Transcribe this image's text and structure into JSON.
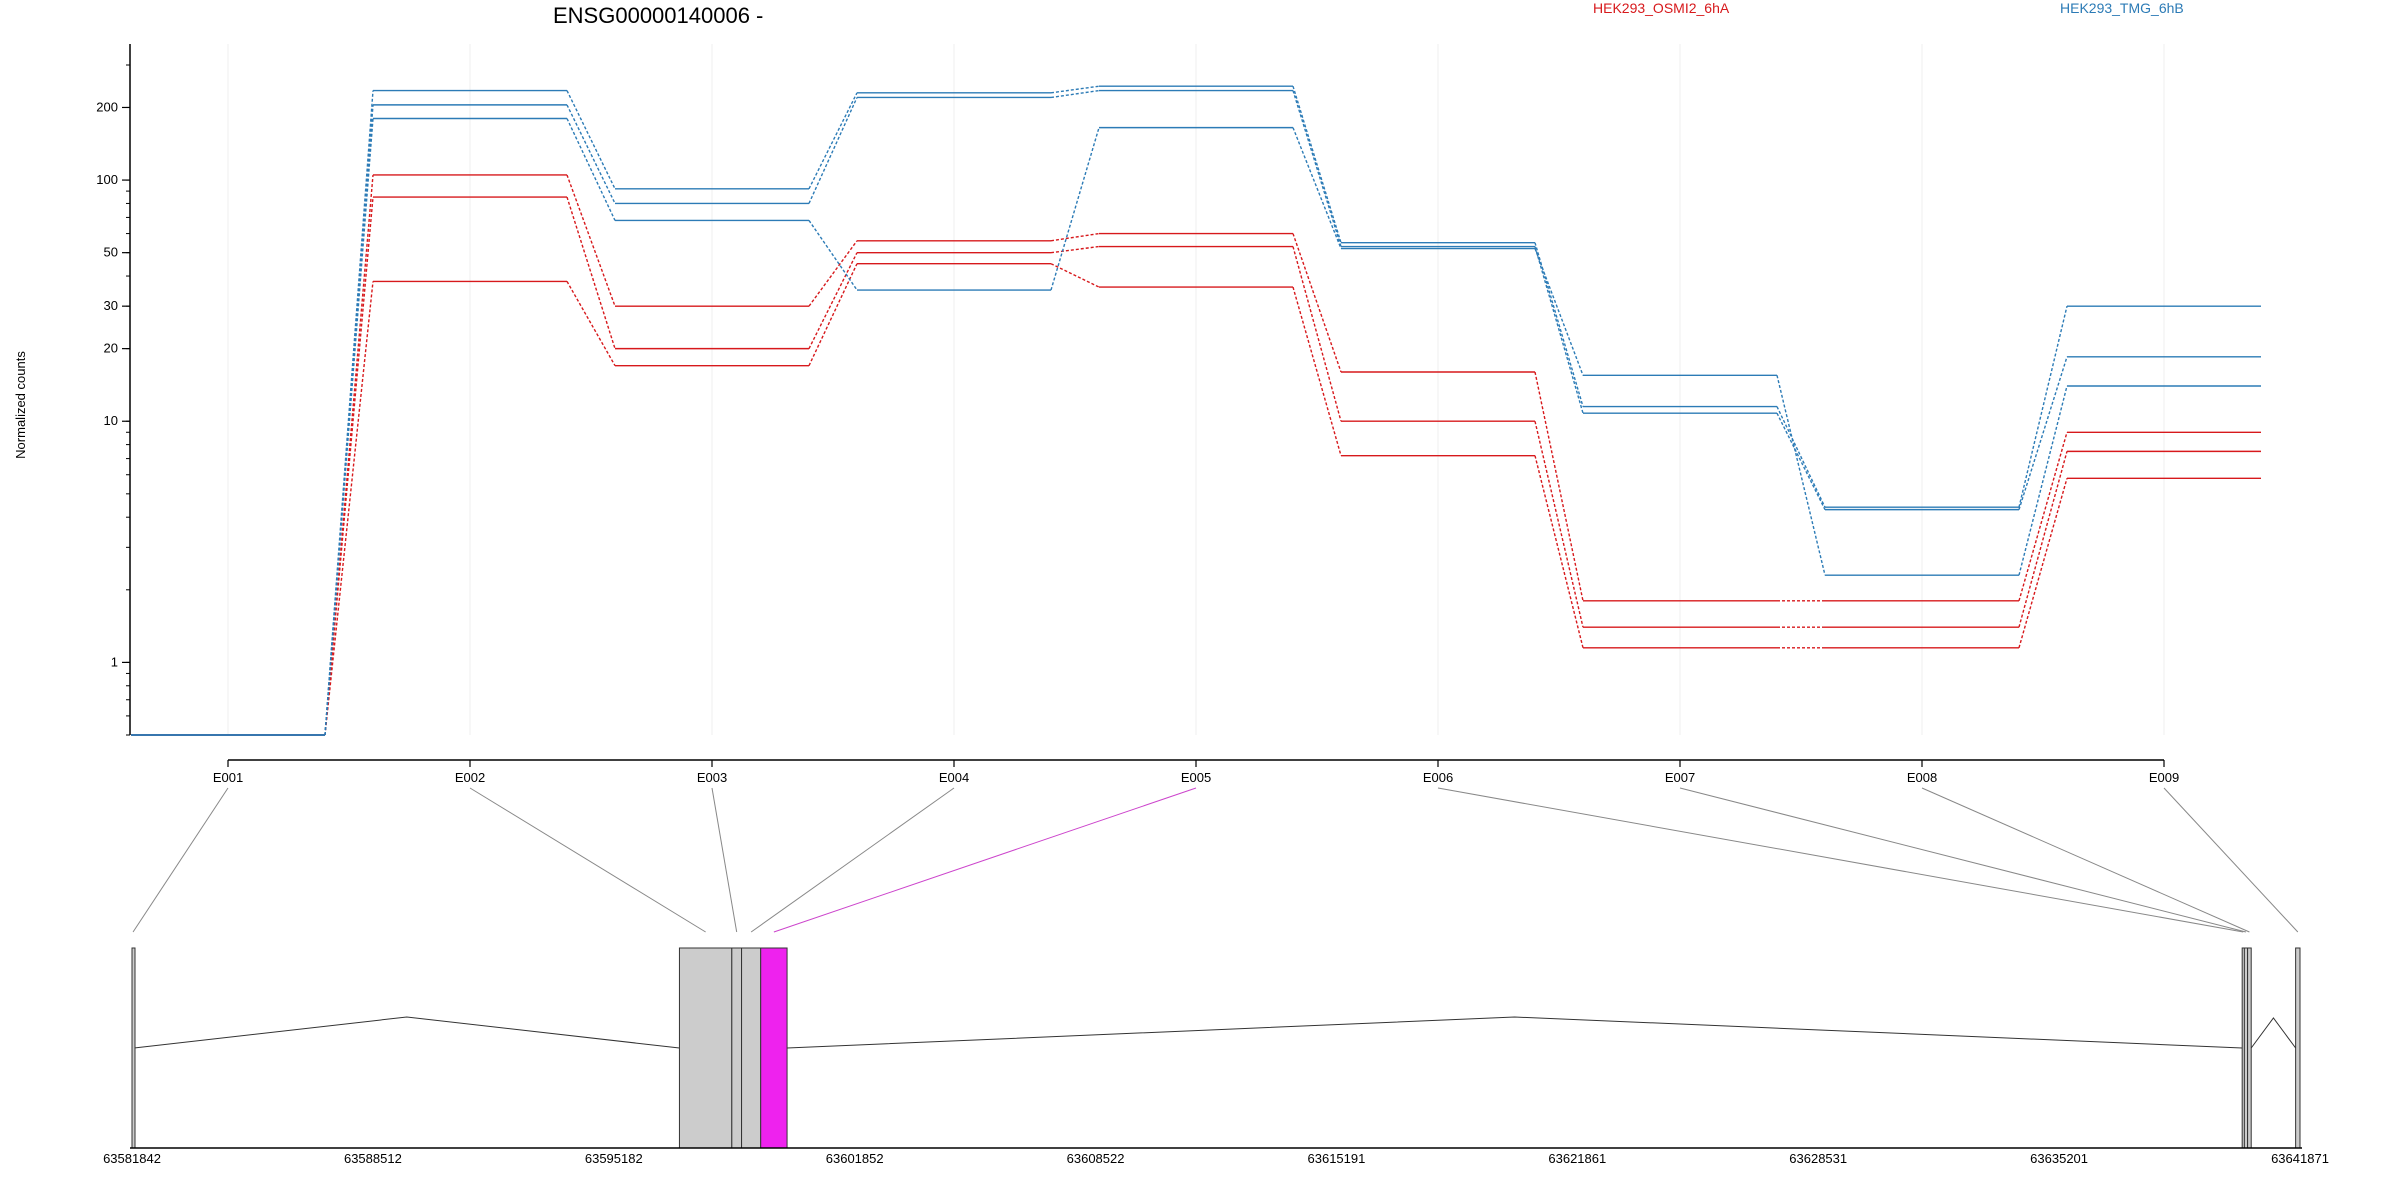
{
  "chart_data": {
    "type": "line",
    "title": "ENSG00000140006 -",
    "ylabel": "Normalized counts",
    "y_scale": "log",
    "ylim": [
      0.5,
      300
    ],
    "y_ticks": [
      1,
      10,
      20,
      30,
      50,
      100,
      200
    ],
    "categories": [
      "E001",
      "E002",
      "E003",
      "E004",
      "E005",
      "E006",
      "E007",
      "E008",
      "E009"
    ],
    "grid": "vertical at each exon",
    "legend_position": "top-right",
    "legend": [
      {
        "name": "HEK293_OSMI2_6hA",
        "color": "#d7191c"
      },
      {
        "name": "HEK293_TMG_6hB",
        "color": "#2c7bb6"
      }
    ],
    "series": [
      {
        "group": "HEK293_OSMI2_6hA",
        "color": "#d7191c",
        "values": [
          0.5,
          105,
          30,
          56,
          60,
          16,
          1.8,
          1.8,
          9
        ]
      },
      {
        "group": "HEK293_OSMI2_6hA",
        "color": "#d7191c",
        "values": [
          0.5,
          85,
          20,
          50,
          53,
          10,
          1.4,
          1.4,
          7.5
        ]
      },
      {
        "group": "HEK293_OSMI2_6hA",
        "color": "#d7191c",
        "values": [
          0.5,
          38,
          17,
          45,
          36,
          7.2,
          1.15,
          1.15,
          5.8
        ]
      },
      {
        "group": "HEK293_TMG_6hB",
        "color": "#2c7bb6",
        "values": [
          0.5,
          235,
          92,
          230,
          245,
          55,
          11.5,
          4.4,
          30
        ]
      },
      {
        "group": "HEK293_TMG_6hB",
        "color": "#2c7bb6",
        "values": [
          0.5,
          205,
          80,
          220,
          235,
          53,
          10.8,
          4.3,
          18.5
        ]
      },
      {
        "group": "HEK293_TMG_6hB",
        "color": "#2c7bb6",
        "values": [
          0.5,
          180,
          68,
          35,
          165,
          52,
          15.5,
          2.3,
          14
        ]
      }
    ],
    "genome_axis": {
      "ticks": [
        "63581842",
        "63588512",
        "63595182",
        "63601852",
        "63608522",
        "63615191",
        "63621861",
        "63628531",
        "63635201",
        "63641871"
      ],
      "start": 63581842,
      "end": 63641871
    },
    "exons": [
      {
        "id": "E001",
        "start": 63581842,
        "end": 63581900,
        "highlight": false
      },
      {
        "id": "E002",
        "start": 63597000,
        "end": 63598450,
        "highlight": false
      },
      {
        "id": "E003",
        "start": 63598450,
        "end": 63598720,
        "highlight": false
      },
      {
        "id": "E004",
        "start": 63598720,
        "end": 63599250,
        "highlight": false
      },
      {
        "id": "E005",
        "start": 63599250,
        "end": 63599980,
        "highlight": true
      },
      {
        "id": "E006",
        "start": 63640270,
        "end": 63640330,
        "highlight": false
      },
      {
        "id": "E007",
        "start": 63640330,
        "end": 63640420,
        "highlight": false
      },
      {
        "id": "E008",
        "start": 63640420,
        "end": 63640520,
        "highlight": false
      },
      {
        "id": "E009",
        "start": 63641750,
        "end": 63641871,
        "highlight": false
      }
    ],
    "colors": {
      "highlight": "#ee22ee",
      "exon": "#cccccc"
    }
  }
}
